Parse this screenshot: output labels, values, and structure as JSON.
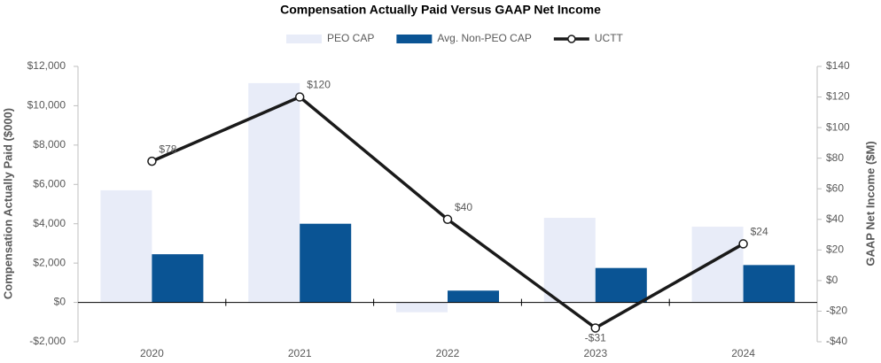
{
  "chart_data": {
    "type": "bar",
    "title": "Compensation Actually Paid Versus GAAP Net Income",
    "ylabel": "Compensation Actually Paid ($000)",
    "y2label": "GAAP Net Income ($M)",
    "categories": [
      "2020",
      "2021",
      "2022",
      "2023",
      "2024"
    ],
    "legend": "top",
    "series": [
      {
        "name": "PEO CAP",
        "type": "bar",
        "color": "#e8ecf8",
        "values": [
          5700,
          11150,
          -500,
          4300,
          3850
        ]
      },
      {
        "name": "Avg. Non-PEO CAP",
        "type": "bar",
        "color": "#0a5494",
        "values": [
          2450,
          4000,
          600,
          1750,
          1900
        ]
      },
      {
        "name": "UCTT",
        "type": "line",
        "axis": "y2",
        "color": "#1a1a1a",
        "values": [
          78,
          120,
          40,
          -31,
          24
        ],
        "value_labels": [
          "$78",
          "$120",
          "$40",
          "-$31",
          "$24"
        ]
      }
    ],
    "ylim": [
      -2000,
      12000
    ],
    "yticks": [
      {
        "value": -2000,
        "label": "-$2,000"
      },
      {
        "value": 0,
        "label": "$0"
      },
      {
        "value": 2000,
        "label": "$2,000"
      },
      {
        "value": 4000,
        "label": "$4,000"
      },
      {
        "value": 6000,
        "label": "$6,000"
      },
      {
        "value": 8000,
        "label": "$8,000"
      },
      {
        "value": 10000,
        "label": "$10,000"
      },
      {
        "value": 12000,
        "label": "$12,000"
      }
    ],
    "y2lim": [
      -40,
      140
    ],
    "y2ticks": [
      {
        "value": -40,
        "label": "-$40"
      },
      {
        "value": -20,
        "label": "-$20"
      },
      {
        "value": 0,
        "label": "$0"
      },
      {
        "value": 20,
        "label": "$20"
      },
      {
        "value": 40,
        "label": "$40"
      },
      {
        "value": 60,
        "label": "$60"
      },
      {
        "value": 80,
        "label": "$80"
      },
      {
        "value": 100,
        "label": "$100"
      },
      {
        "value": 120,
        "label": "$120"
      },
      {
        "value": 140,
        "label": "$140"
      }
    ]
  }
}
